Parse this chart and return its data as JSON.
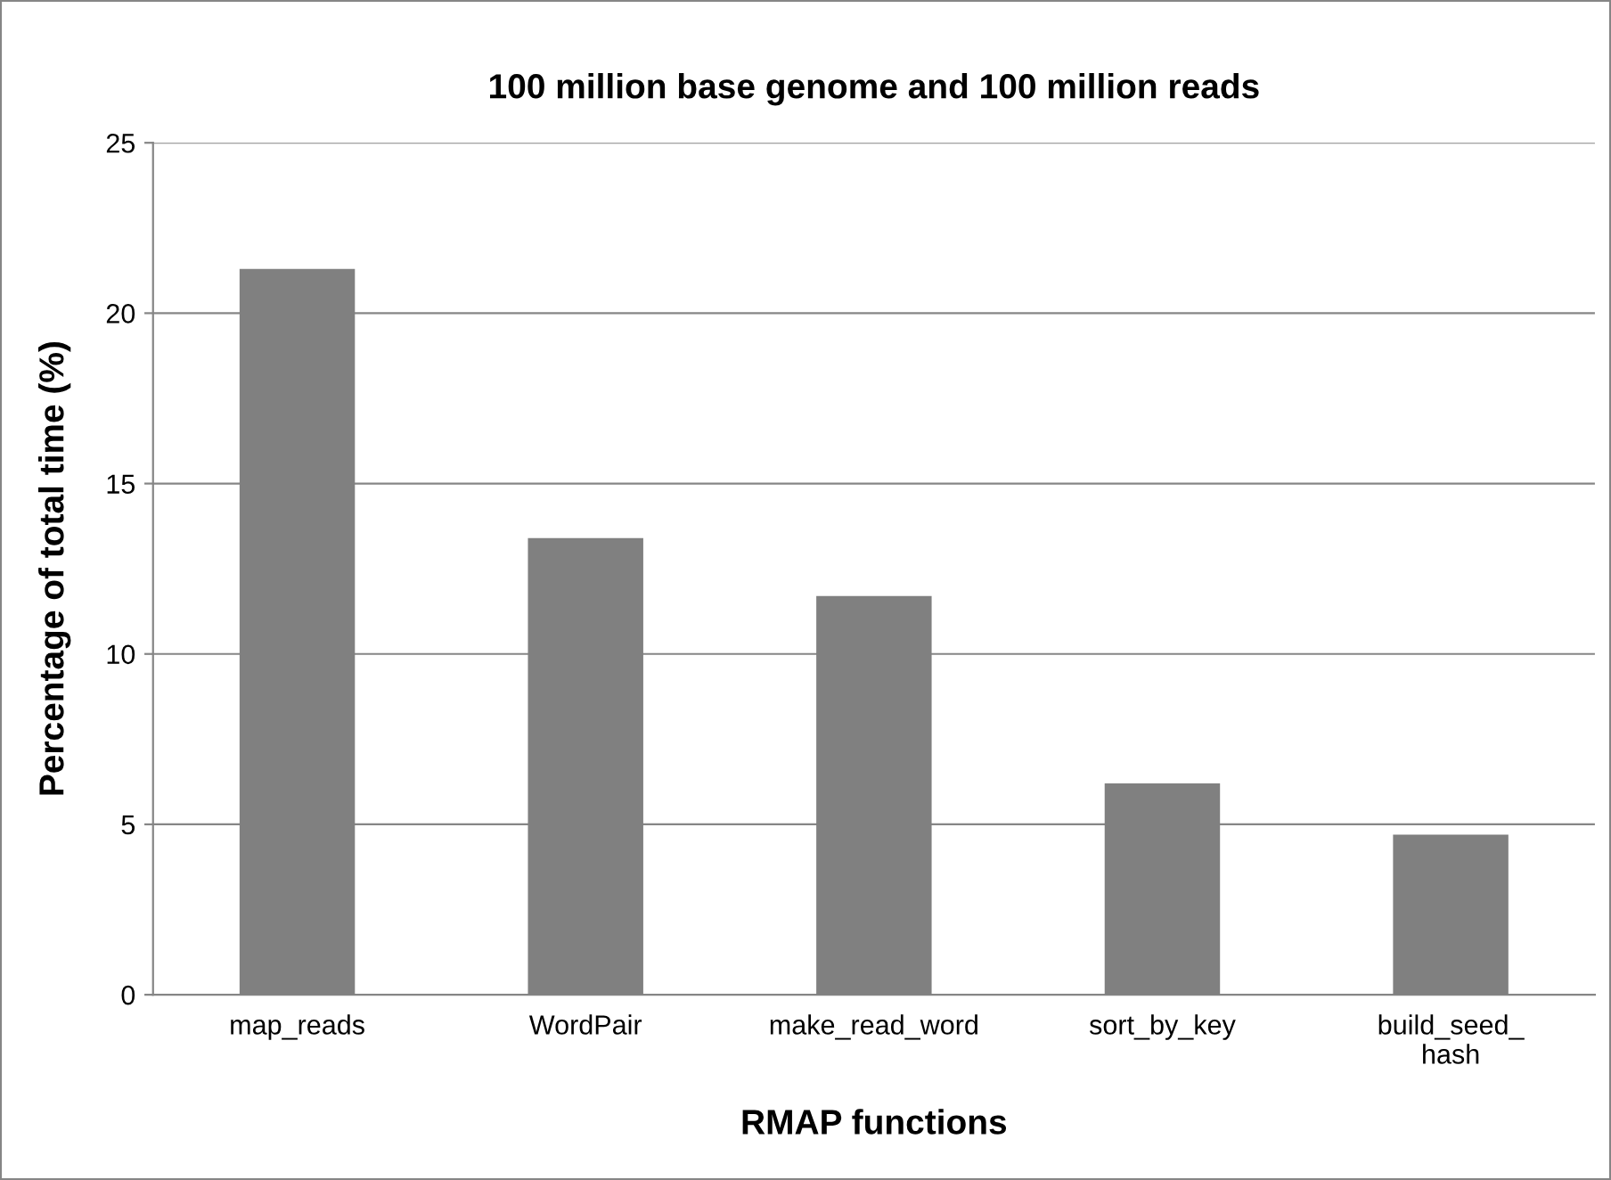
{
  "chart_data": {
    "type": "bar",
    "title": "100 million base genome and 100 million reads",
    "xlabel": "RMAP functions",
    "ylabel": "Percentage of total time (%)",
    "categories": [
      "map_reads",
      "WordPair",
      "make_read_word",
      "sort_by_key",
      "build_seed_\nhash"
    ],
    "values": [
      21.3,
      13.4,
      11.7,
      6.2,
      4.7
    ],
    "color": "#808080",
    "ylim": [
      0,
      25
    ],
    "yticks": [
      0,
      5,
      10,
      15,
      20,
      25
    ],
    "grid": "y"
  }
}
